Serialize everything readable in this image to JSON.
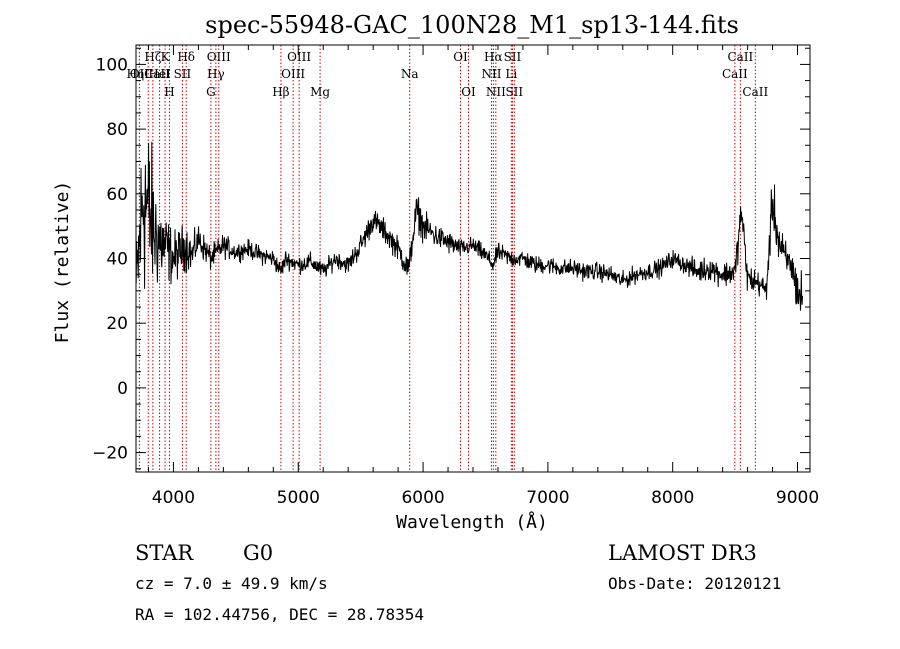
{
  "chart_data": {
    "type": "line",
    "title": "spec-55948-GAC_100N28_M1_sp13-144.fits",
    "xlabel": "Wavelength (Å)",
    "ylabel": "Flux (relative)",
    "xlim": [
      3700,
      9100
    ],
    "ylim": [
      -26,
      106
    ],
    "xticks": [
      4000,
      5000,
      6000,
      7000,
      8000,
      9000
    ],
    "xticklabels": [
      "4000",
      "5000",
      "6000",
      "7000",
      "8000",
      "9000"
    ],
    "yticks": [
      -20,
      0,
      20,
      40,
      60,
      80,
      100
    ],
    "yticklabels": [
      "−20",
      "0",
      "20",
      "40",
      "60",
      "80",
      "100"
    ],
    "spectrum_anchor": {
      "x": [
        3700,
        3760,
        3800,
        3850,
        3900,
        3950,
        4000,
        4050,
        4100,
        4150,
        4200,
        4300,
        4400,
        4500,
        4600,
        4700,
        4800,
        4861,
        4900,
        5000,
        5100,
        5200,
        5300,
        5400,
        5500,
        5600,
        5700,
        5800,
        5890,
        5900,
        5950,
        6000,
        6100,
        6200,
        6300,
        6400,
        6500,
        6563,
        6600,
        6700,
        6800,
        6900,
        7000,
        7100,
        7200,
        7300,
        7400,
        7500,
        7600,
        7700,
        7800,
        7900,
        8000,
        8100,
        8200,
        8300,
        8400,
        8500,
        8550,
        8600,
        8700,
        8750,
        8800,
        8850,
        8900,
        8950,
        9000,
        9050
      ],
      "y": [
        30,
        60,
        55,
        48,
        45,
        43,
        40,
        42,
        44,
        41,
        46,
        40,
        44,
        42,
        43,
        41,
        40,
        36,
        40,
        38,
        39,
        36,
        40,
        38,
        44,
        52,
        48,
        43,
        36,
        42,
        55,
        50,
        47,
        45,
        43,
        44,
        41,
        38,
        42,
        40,
        40,
        38,
        38,
        37,
        37,
        36,
        36,
        35,
        33,
        35,
        36,
        37,
        40,
        38,
        36,
        37,
        35,
        36,
        55,
        34,
        32,
        30,
        58,
        45,
        40,
        38,
        30,
        27
      ],
      "noise": [
        15,
        35,
        30,
        20,
        15,
        11,
        9,
        8,
        8,
        6,
        5,
        4,
        4,
        3,
        3,
        3,
        3,
        3,
        3,
        3,
        3,
        3,
        3,
        3,
        4,
        4,
        4,
        4,
        5,
        5,
        6,
        5,
        4,
        4,
        3,
        3,
        3,
        3,
        3,
        3,
        3,
        3,
        3,
        3,
        3,
        3,
        3,
        3,
        3,
        3,
        3,
        3,
        3,
        3,
        4,
        4,
        4,
        5,
        6,
        5,
        4,
        4,
        9,
        8,
        6,
        6,
        8,
        12
      ]
    },
    "lines": [
      {
        "x": 3727,
        "label": "OII",
        "row": 1
      },
      {
        "x": 3798,
        "label": "HηCaII",
        "row": 1
      },
      {
        "x": 3835,
        "label": "Hζ",
        "row": 0
      },
      {
        "x": 3889,
        "label": "HeI",
        "row": 1
      },
      {
        "x": 3933,
        "label": "K",
        "row": 0
      },
      {
        "x": 3968,
        "label": "H",
        "row": 2
      },
      {
        "x": 4072,
        "label": "SII",
        "row": 1
      },
      {
        "x": 4102,
        "label": "Hδ",
        "row": 0
      },
      {
        "x": 4300,
        "label": "G",
        "row": 2
      },
      {
        "x": 4340,
        "label": "Hγ",
        "row": 1
      },
      {
        "x": 4363,
        "label": "OIII",
        "row": 0
      },
      {
        "x": 4861,
        "label": "Hβ",
        "row": 2
      },
      {
        "x": 4959,
        "label": "OIII",
        "row": 1
      },
      {
        "x": 5007,
        "label": "OIII",
        "row": 0
      },
      {
        "x": 5175,
        "label": "Mg",
        "row": 2
      },
      {
        "x": 5893,
        "label": "Na",
        "row": 1
      },
      {
        "x": 6300,
        "label": "OI",
        "row": 0
      },
      {
        "x": 6364,
        "label": "OI",
        "row": 2
      },
      {
        "x": 6548,
        "label": "NII",
        "row": 1
      },
      {
        "x": 6563,
        "label": "Hα",
        "row": 0
      },
      {
        "x": 6583,
        "label": "NII",
        "row": 2
      },
      {
        "x": 6707,
        "label": "Li",
        "row": 1
      },
      {
        "x": 6716,
        "label": "SII",
        "row": 0
      },
      {
        "x": 6731,
        "label": "SII",
        "row": 2
      },
      {
        "x": 8498,
        "label": "CaII",
        "row": 1
      },
      {
        "x": 8542,
        "label": "CaII",
        "row": 0
      },
      {
        "x": 8662,
        "label": "CaII",
        "row": 2
      }
    ],
    "line_color": "#cc0000"
  },
  "info": {
    "class": "STAR",
    "subclass": "G0",
    "survey": "LAMOST DR3",
    "cz": "cz = 7.0 ± 49.9 km/s",
    "obs_date": "Obs-Date: 20120121",
    "coords": "RA = 102.44756, DEC =  28.78354"
  }
}
